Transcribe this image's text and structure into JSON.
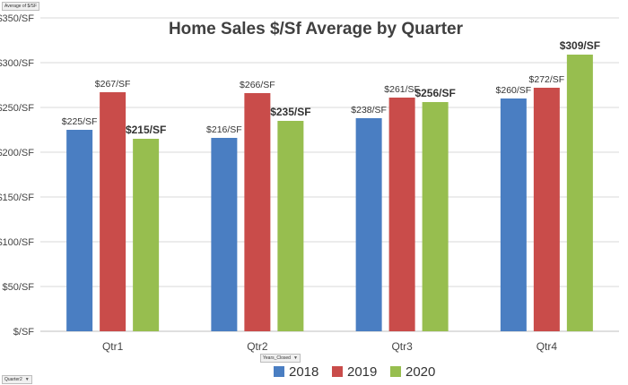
{
  "field_buttons": {
    "values_field": "Average of $/SF",
    "column_field": "Years_Closed",
    "row_field": "Quarter2"
  },
  "chart_data": {
    "type": "bar",
    "title": "Home Sales $/Sf Average by Quarter",
    "xlabel": "",
    "ylabel": "",
    "categories": [
      "Qtr1",
      "Qtr2",
      "Qtr3",
      "Qtr4"
    ],
    "series": [
      {
        "name": "2018",
        "color": "#4A7EC2",
        "values": [
          225,
          216,
          238,
          260
        ],
        "labels": [
          "$225/SF",
          "$216/SF",
          "$238/SF",
          "$260/SF"
        ],
        "bold_labels": false
      },
      {
        "name": "2019",
        "color": "#C94C4A",
        "values": [
          267,
          266,
          261,
          272
        ],
        "labels": [
          "$267/SF",
          "$266/SF",
          "$261/SF",
          "$272/SF"
        ],
        "bold_labels": false
      },
      {
        "name": "2020",
        "color": "#97BE4F",
        "values": [
          215,
          235,
          256,
          309
        ],
        "labels": [
          "$215/SF",
          "$235/SF",
          "$256/SF",
          "$309/SF"
        ],
        "bold_labels": true
      }
    ],
    "yticks": [
      0,
      50,
      100,
      150,
      200,
      250,
      300,
      350
    ],
    "ytick_labels": [
      "$/SF",
      "$50/SF",
      "$100/SF",
      "$150/SF",
      "$200/SF",
      "$250/SF",
      "$300/SF",
      "$350/SF"
    ],
    "ylim": [
      0,
      350
    ],
    "grid": true,
    "legend": "bottom"
  }
}
